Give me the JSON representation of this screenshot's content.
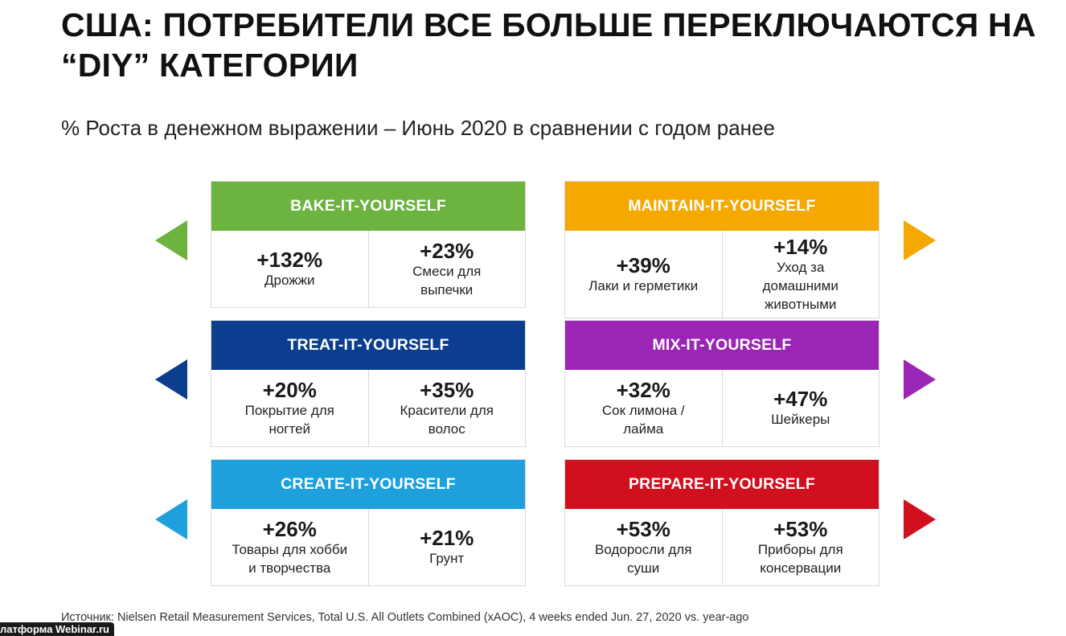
{
  "title": "США: ПОТРЕБИТЕЛИ ВСЕ БОЛЬШЕ ПЕРЕКЛЮЧАЮТСЯ НА “DIY” КАТЕГОРИИ",
  "subtitle": "% Роста в денежном выражении – Июнь 2020 в сравнении с годом ранее",
  "cards": [
    {
      "title": "BAKE-IT-YOURSELF",
      "color": "#6cb33f",
      "items": [
        {
          "value": "+132%",
          "label": "Дрожжи"
        },
        {
          "value": "+23%",
          "label": "Смеси для\nвыпечки"
        }
      ]
    },
    {
      "title": "MAINTAIN-IT-YOURSELF",
      "color": "#f5a800",
      "items": [
        {
          "value": "+39%",
          "label": "Лаки и герметики"
        },
        {
          "value": "+14%",
          "label": "Уход за\nдомашними\nживотными"
        }
      ]
    },
    {
      "title": "TREAT-IT-YOURSELF",
      "color": "#0b3e8f",
      "items": [
        {
          "value": "+20%",
          "label": "Покрытие для\nногтей"
        },
        {
          "value": "+35%",
          "label": "Красители для\nволос"
        }
      ]
    },
    {
      "title": "MIX-IT-YOURSELF",
      "color": "#9b26b6",
      "items": [
        {
          "value": "+32%",
          "label": "Сок лимона /\nлайма"
        },
        {
          "value": "+47%",
          "label": "Шейкеры"
        }
      ]
    },
    {
      "title": "CREATE-IT-YOURSELF",
      "color": "#1ea0dc",
      "items": [
        {
          "value": "+26%",
          "label": "Товары для хобби\nи творчества"
        },
        {
          "value": "+21%",
          "label": "Грунт"
        }
      ]
    },
    {
      "title": "PREPARE-IT-YOURSELF",
      "color": "#d0101f",
      "items": [
        {
          "value": "+53%",
          "label": "Водоросли для\nсуши"
        },
        {
          "value": "+53%",
          "label": "Приборы для\nконсервации"
        }
      ]
    }
  ],
  "source": "Источник: Nielsen Retail Measurement Services, Total U.S. All Outlets Combined (xAOC), 4 weeks ended Jun. 27, 2020 vs. year-ago",
  "watermark": "латформа Webinar.ru"
}
